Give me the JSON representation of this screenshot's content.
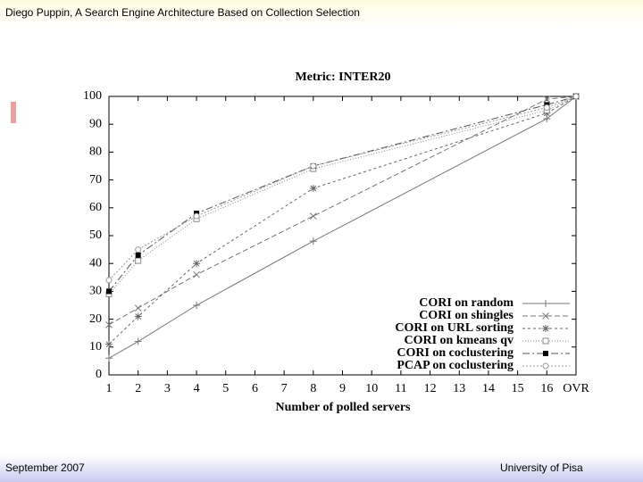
{
  "header": {
    "title": "Diego Puppin, A Search Engine Architecture Based on Collection Selection"
  },
  "footer": {
    "left": "September 2007",
    "right": "University of Pisa"
  },
  "chart_data": {
    "type": "line",
    "title": "Metric: INTER20",
    "x_label": "Number of polled servers",
    "x": [
      1,
      2,
      4,
      8,
      16,
      17
    ],
    "xlim": [
      1,
      17
    ],
    "xticks": [
      1,
      2,
      3,
      4,
      5,
      6,
      7,
      8,
      9,
      10,
      11,
      12,
      13,
      14,
      15,
      16,
      {
        "value": 17,
        "label": "OVR"
      }
    ],
    "ylim": [
      0,
      100
    ],
    "yticks": [
      0,
      10,
      20,
      30,
      40,
      50,
      60,
      70,
      80,
      90,
      100
    ],
    "legend": "lower right",
    "series": [
      {
        "name": "CORI on random",
        "color": "#777777",
        "marker": "plus",
        "dash": "none",
        "values": [
          6,
          12,
          25,
          48,
          92,
          100
        ]
      },
      {
        "name": "CORI on shingles",
        "color": "#777777",
        "marker": "cross",
        "dash": "6,3",
        "values": [
          18,
          24,
          36,
          57,
          99,
          100
        ]
      },
      {
        "name": "CORI on URL sorting",
        "color": "#666666",
        "marker": "star",
        "dash": "3,3",
        "values": [
          11,
          21,
          40,
          67,
          94,
          100
        ]
      },
      {
        "name": "CORI on kmeans qv",
        "color": "#888888",
        "marker": "square",
        "dash": "1,2",
        "values": [
          29,
          41,
          56,
          74,
          95,
          100
        ]
      },
      {
        "name": "CORI on coclustering",
        "color": "#555555",
        "marker": "filled-square",
        "dash": "8,3,2,3",
        "values": [
          30,
          43,
          58,
          75,
          97,
          100
        ]
      },
      {
        "name": "PCAP on coclustering",
        "color": "#999999",
        "marker": "circle",
        "dash": "2,2",
        "values": [
          34,
          45,
          57,
          75,
          96,
          100
        ]
      }
    ]
  }
}
